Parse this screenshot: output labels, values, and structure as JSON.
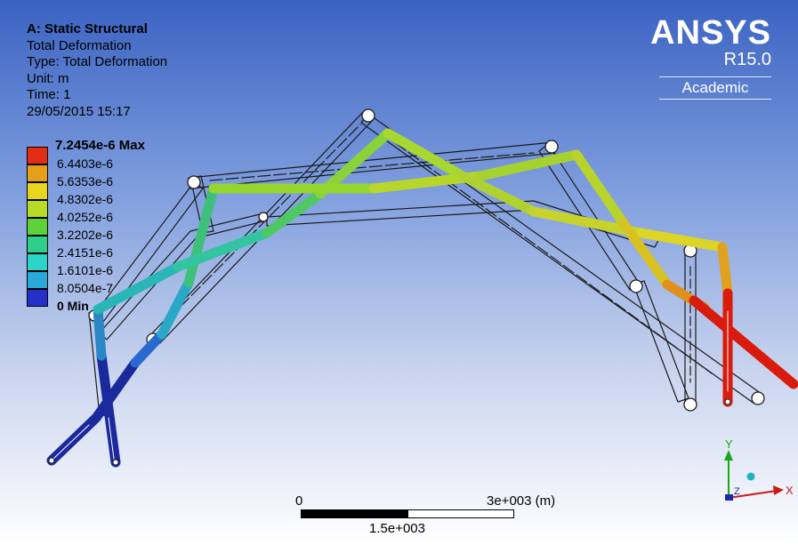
{
  "info": {
    "title": "A: Static Structural",
    "result": "Total Deformation",
    "type": "Type: Total Deformation",
    "unit": "Unit: m",
    "time": "Time: 1",
    "date": "29/05/2015 15:17"
  },
  "legend": {
    "max_label": "7.2454e-6 Max",
    "min_label": "0 Min",
    "levels": [
      {
        "label": "6.4403e-6",
        "color": "#e22d12"
      },
      {
        "label": "5.6353e-6",
        "color": "#e3a018"
      },
      {
        "label": "4.8302e-6",
        "color": "#e8d61c"
      },
      {
        "label": "4.0252e-6",
        "color": "#b7dc26"
      },
      {
        "label": "3.2202e-6",
        "color": "#5ed23a"
      },
      {
        "label": "2.4151e-6",
        "color": "#2cd08a"
      },
      {
        "label": "1.6101e-6",
        "color": "#2bd5c8"
      },
      {
        "label": "8.0504e-7",
        "color": "#2aa8d8"
      },
      {
        "label": "",
        "color": "#2431c9"
      }
    ]
  },
  "logo": {
    "brand": "ANSYS",
    "version": "R15.0",
    "edition": "Academic"
  },
  "scale_bar": {
    "start": "0",
    "end": "3e+003 (m)",
    "mid": "1.5e+003"
  },
  "triad": {
    "x_label": "X",
    "y_label": "Y",
    "z_label": "Z"
  },
  "colors": {
    "red": "#d81b0c",
    "blue": "#1a2a9c"
  }
}
